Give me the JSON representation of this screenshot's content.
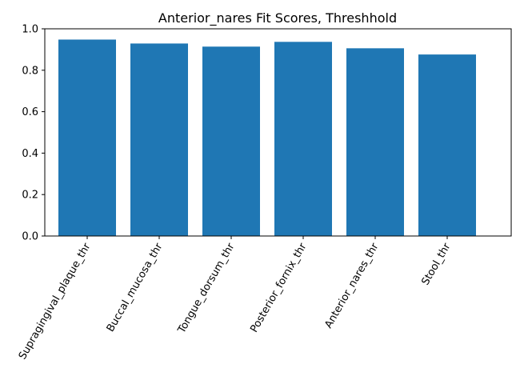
{
  "chart_data": {
    "type": "bar",
    "title": "Anterior_nares Fit Scores, Threshhold",
    "xlabel": "",
    "ylabel": "",
    "categories": [
      "Supragingival_plaque_thr",
      "Buccal_mucosa_thr",
      "Tongue_dorsum_thr",
      "Posterior_fornix_thr",
      "Anterior_nares_thr",
      "Stool_thr"
    ],
    "values": [
      0.948,
      0.929,
      0.914,
      0.937,
      0.906,
      0.876
    ],
    "ylim": [
      0.0,
      1.0
    ],
    "yticks": [
      "0.0",
      "0.2",
      "0.4",
      "0.6",
      "0.8",
      "1.0"
    ],
    "bar_color": "#1f77b4",
    "grid": false,
    "legend": "none"
  }
}
